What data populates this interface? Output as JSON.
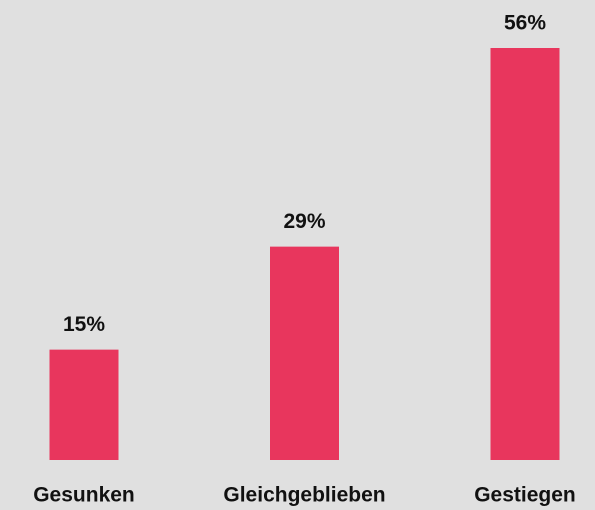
{
  "chart_data": {
    "type": "bar",
    "categories": [
      "Gesunken",
      "Gleichgeblieben",
      "Gestiegen"
    ],
    "values": [
      15,
      29,
      56
    ],
    "value_labels": [
      "15%",
      "29%",
      "56%"
    ],
    "color": "#e8365d"
  }
}
